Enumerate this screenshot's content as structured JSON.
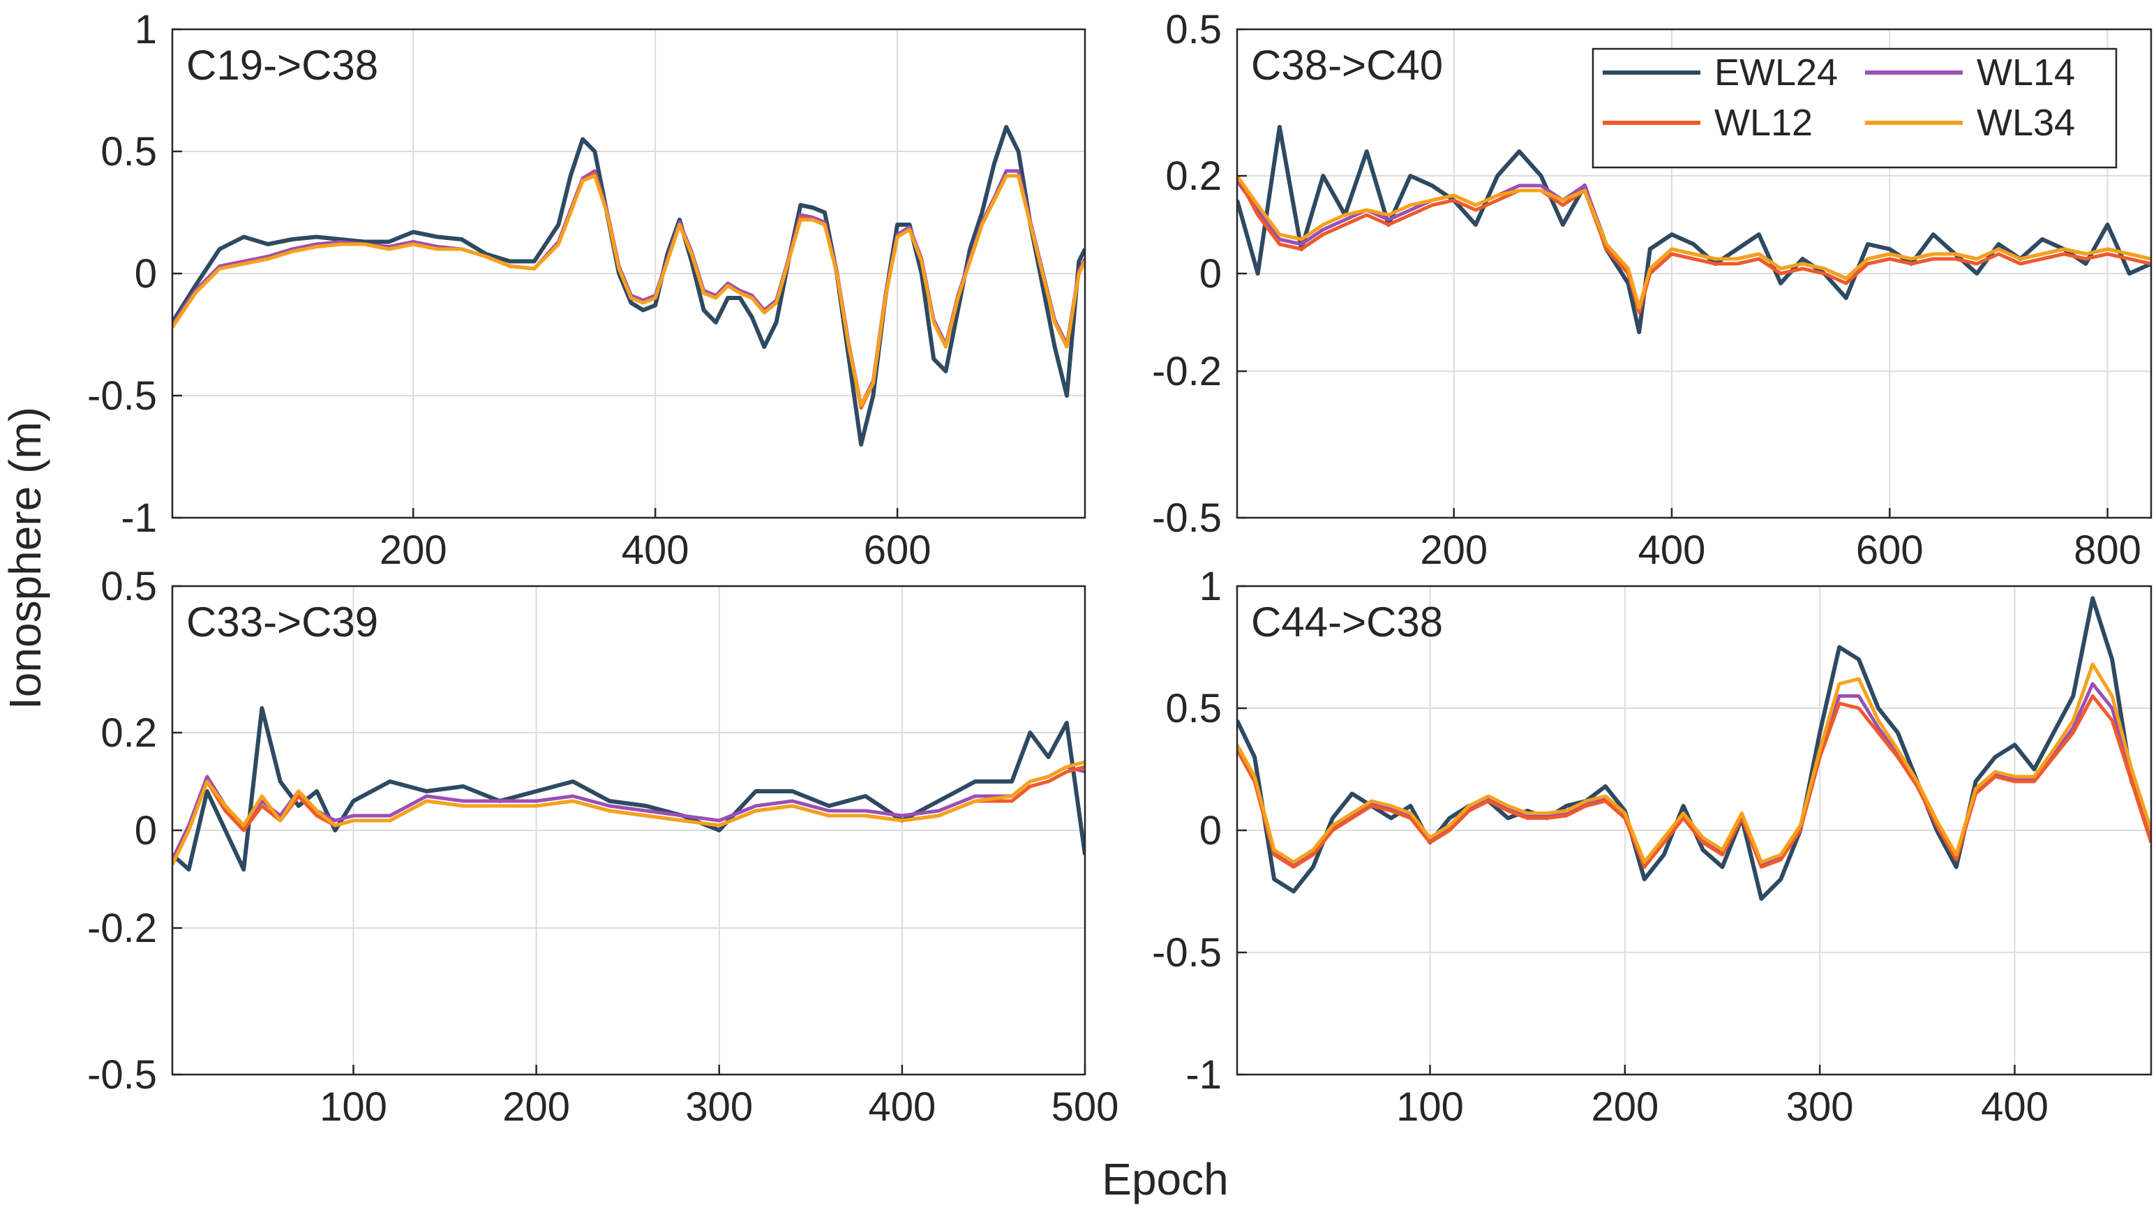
{
  "figure": {
    "ylabel": "Ionosphere (m)",
    "xlabel": "Epoch"
  },
  "legend": {
    "placement": "top-right of panel 2",
    "entries": [
      {
        "name": "EWL24",
        "color": "#2E4A62"
      },
      {
        "name": "WL14",
        "color": "#9B4FB5"
      },
      {
        "name": "WL12",
        "color": "#EF5A2A"
      },
      {
        "name": "WL34",
        "color": "#F7A11A"
      }
    ]
  },
  "chart_data": [
    {
      "type": "line",
      "panel_label": "C19->C38",
      "xlim": [
        1,
        755
      ],
      "ylim": [
        -1,
        1
      ],
      "xticks": [
        200,
        400,
        600
      ],
      "yticks": [
        -1,
        -0.5,
        0,
        0.5,
        1
      ],
      "yticklabels": [
        "-1",
        "-0.5",
        "0",
        "0.5",
        "1"
      ],
      "grid": true,
      "x": [
        1,
        20,
        40,
        60,
        80,
        100,
        120,
        140,
        160,
        180,
        200,
        220,
        240,
        260,
        280,
        300,
        320,
        330,
        340,
        350,
        360,
        370,
        380,
        390,
        400,
        410,
        420,
        430,
        440,
        450,
        460,
        470,
        480,
        490,
        500,
        510,
        520,
        530,
        540,
        550,
        560,
        570,
        580,
        590,
        600,
        610,
        620,
        630,
        640,
        650,
        660,
        670,
        680,
        690,
        700,
        710,
        720,
        730,
        740,
        750,
        755
      ],
      "series": [
        {
          "name": "WL12",
          "values": [
            -0.22,
            -0.08,
            0.02,
            0.04,
            0.06,
            0.09,
            0.11,
            0.12,
            0.12,
            0.1,
            0.12,
            0.1,
            0.1,
            0.07,
            0.03,
            0.02,
            0.12,
            0.25,
            0.38,
            0.41,
            0.25,
            0.02,
            -0.1,
            -0.12,
            -0.1,
            0.05,
            0.2,
            0.08,
            -0.08,
            -0.1,
            -0.05,
            -0.08,
            -0.1,
            -0.16,
            -0.12,
            0.05,
            0.23,
            0.22,
            0.2,
            0.0,
            -0.3,
            -0.55,
            -0.45,
            -0.1,
            0.15,
            0.18,
            0.05,
            -0.2,
            -0.3,
            -0.1,
            0.05,
            0.2,
            0.3,
            0.4,
            0.4,
            0.2,
            0.0,
            -0.2,
            -0.3,
            0.0,
            0.05
          ]
        },
        {
          "name": "WL14",
          "values": [
            -0.21,
            -0.07,
            0.03,
            0.05,
            0.07,
            0.1,
            0.12,
            0.13,
            0.12,
            0.11,
            0.13,
            0.11,
            0.1,
            0.07,
            0.03,
            0.02,
            0.13,
            0.26,
            0.39,
            0.42,
            0.26,
            0.03,
            -0.09,
            -0.11,
            -0.09,
            0.06,
            0.21,
            0.09,
            -0.07,
            -0.09,
            -0.04,
            -0.07,
            -0.09,
            -0.15,
            -0.11,
            0.06,
            0.24,
            0.23,
            0.21,
            0.01,
            -0.29,
            -0.54,
            -0.44,
            -0.09,
            0.16,
            0.19,
            0.06,
            -0.19,
            -0.29,
            -0.09,
            0.06,
            0.21,
            0.31,
            0.42,
            0.42,
            0.21,
            0.01,
            -0.19,
            -0.29,
            0.01,
            0.06
          ]
        },
        {
          "name": "WL34",
          "values": [
            -0.22,
            -0.08,
            0.02,
            0.04,
            0.06,
            0.09,
            0.11,
            0.12,
            0.12,
            0.1,
            0.12,
            0.1,
            0.1,
            0.07,
            0.03,
            0.02,
            0.12,
            0.25,
            0.38,
            0.4,
            0.25,
            0.02,
            -0.1,
            -0.12,
            -0.1,
            0.05,
            0.2,
            0.08,
            -0.08,
            -0.1,
            -0.05,
            -0.08,
            -0.1,
            -0.16,
            -0.12,
            0.05,
            0.22,
            0.22,
            0.2,
            0.0,
            -0.3,
            -0.54,
            -0.45,
            -0.1,
            0.15,
            0.18,
            0.05,
            -0.2,
            -0.3,
            -0.1,
            0.05,
            0.2,
            0.3,
            0.4,
            0.4,
            0.2,
            0.0,
            -0.2,
            -0.3,
            0.0,
            0.05
          ]
        },
        {
          "name": "EWL24",
          "values": [
            -0.2,
            -0.05,
            0.1,
            0.15,
            0.12,
            0.14,
            0.15,
            0.14,
            0.13,
            0.13,
            0.17,
            0.15,
            0.14,
            0.08,
            0.05,
            0.05,
            0.2,
            0.4,
            0.55,
            0.5,
            0.25,
            0.0,
            -0.12,
            -0.15,
            -0.13,
            0.08,
            0.22,
            0.05,
            -0.15,
            -0.2,
            -0.1,
            -0.1,
            -0.18,
            -0.3,
            -0.2,
            0.05,
            0.28,
            0.27,
            0.25,
            0.0,
            -0.35,
            -0.7,
            -0.5,
            -0.1,
            0.2,
            0.2,
            0.0,
            -0.35,
            -0.4,
            -0.15,
            0.1,
            0.25,
            0.45,
            0.6,
            0.5,
            0.2,
            -0.05,
            -0.3,
            -0.5,
            0.05,
            0.1
          ]
        }
      ]
    },
    {
      "type": "line",
      "panel_label": "C38->C40",
      "xlim": [
        1,
        840
      ],
      "ylim": [
        -0.5,
        0.5
      ],
      "xticks": [
        200,
        400,
        600,
        800
      ],
      "yticks": [
        -0.5,
        -0.2,
        0,
        0.2,
        0.5
      ],
      "yticklabels": [
        "-0.5",
        "-0.2",
        "0",
        "0.2",
        "0.5"
      ],
      "grid": true,
      "x": [
        1,
        20,
        40,
        60,
        80,
        100,
        120,
        140,
        160,
        180,
        200,
        220,
        240,
        260,
        280,
        300,
        320,
        340,
        360,
        370,
        380,
        400,
        420,
        440,
        460,
        480,
        500,
        520,
        540,
        560,
        580,
        600,
        620,
        640,
        660,
        680,
        700,
        720,
        740,
        760,
        780,
        800,
        820,
        840
      ],
      "series": [
        {
          "name": "WL12",
          "values": [
            0.2,
            0.12,
            0.06,
            0.05,
            0.08,
            0.1,
            0.12,
            0.1,
            0.12,
            0.14,
            0.15,
            0.13,
            0.15,
            0.17,
            0.17,
            0.14,
            0.17,
            0.05,
            0.0,
            -0.08,
            0.0,
            0.04,
            0.03,
            0.02,
            0.02,
            0.03,
            0.0,
            0.01,
            0.0,
            -0.02,
            0.02,
            0.03,
            0.02,
            0.03,
            0.03,
            0.02,
            0.04,
            0.02,
            0.03,
            0.04,
            0.03,
            0.04,
            0.03,
            0.02
          ]
        },
        {
          "name": "WL14",
          "values": [
            0.19,
            0.13,
            0.07,
            0.06,
            0.09,
            0.11,
            0.13,
            0.11,
            0.13,
            0.15,
            0.16,
            0.14,
            0.16,
            0.18,
            0.18,
            0.15,
            0.18,
            0.06,
            0.01,
            -0.07,
            0.01,
            0.05,
            0.04,
            0.03,
            0.03,
            0.04,
            0.01,
            0.02,
            0.01,
            -0.01,
            0.03,
            0.04,
            0.03,
            0.04,
            0.04,
            0.03,
            0.05,
            0.03,
            0.04,
            0.05,
            0.04,
            0.05,
            0.04,
            0.03
          ]
        },
        {
          "name": "WL34",
          "values": [
            0.2,
            0.14,
            0.08,
            0.07,
            0.1,
            0.12,
            0.13,
            0.12,
            0.14,
            0.15,
            0.16,
            0.14,
            0.16,
            0.17,
            0.17,
            0.15,
            0.17,
            0.06,
            0.01,
            -0.07,
            0.01,
            0.05,
            0.04,
            0.03,
            0.03,
            0.04,
            0.01,
            0.02,
            0.01,
            -0.01,
            0.03,
            0.04,
            0.03,
            0.04,
            0.04,
            0.03,
            0.05,
            0.03,
            0.04,
            0.05,
            0.04,
            0.05,
            0.04,
            0.03
          ]
        },
        {
          "name": "EWL24",
          "values": [
            0.15,
            0.0,
            0.3,
            0.05,
            0.2,
            0.12,
            0.25,
            0.1,
            0.2,
            0.18,
            0.15,
            0.1,
            0.2,
            0.25,
            0.2,
            0.1,
            0.18,
            0.05,
            -0.02,
            -0.12,
            0.05,
            0.08,
            0.06,
            0.02,
            0.05,
            0.08,
            -0.02,
            0.03,
            0.0,
            -0.05,
            0.06,
            0.05,
            0.02,
            0.08,
            0.04,
            0.0,
            0.06,
            0.03,
            0.07,
            0.05,
            0.02,
            0.1,
            0.0,
            0.02
          ]
        }
      ]
    },
    {
      "type": "line",
      "panel_label": "C33->C39",
      "xlim": [
        1,
        500
      ],
      "ylim": [
        -0.5,
        0.5
      ],
      "xticks": [
        100,
        200,
        300,
        400,
        500
      ],
      "yticks": [
        -0.5,
        -0.2,
        0,
        0.2,
        0.5
      ],
      "yticklabels": [
        "-0.5",
        "-0.2",
        "0",
        "0.2",
        "0.5"
      ],
      "grid": true,
      "x": [
        1,
        10,
        20,
        30,
        40,
        50,
        60,
        70,
        80,
        90,
        100,
        120,
        140,
        160,
        180,
        200,
        220,
        240,
        260,
        280,
        300,
        320,
        340,
        360,
        380,
        400,
        420,
        440,
        460,
        470,
        480,
        490,
        500
      ],
      "series": [
        {
          "name": "WL12",
          "values": [
            -0.07,
            0.0,
            0.1,
            0.04,
            0.0,
            0.05,
            0.02,
            0.07,
            0.03,
            0.01,
            0.02,
            0.02,
            0.06,
            0.05,
            0.05,
            0.05,
            0.06,
            0.04,
            0.03,
            0.02,
            0.01,
            0.04,
            0.05,
            0.03,
            0.03,
            0.02,
            0.03,
            0.06,
            0.06,
            0.09,
            0.1,
            0.12,
            0.13
          ]
        },
        {
          "name": "WL14",
          "values": [
            -0.06,
            0.01,
            0.11,
            0.05,
            0.01,
            0.06,
            0.03,
            0.08,
            0.04,
            0.02,
            0.03,
            0.03,
            0.07,
            0.06,
            0.06,
            0.06,
            0.07,
            0.05,
            0.04,
            0.03,
            0.02,
            0.05,
            0.06,
            0.04,
            0.04,
            0.03,
            0.04,
            0.07,
            0.07,
            0.1,
            0.11,
            0.13,
            0.12
          ]
        },
        {
          "name": "WL34",
          "values": [
            -0.07,
            0.0,
            0.1,
            0.05,
            0.01,
            0.07,
            0.02,
            0.08,
            0.04,
            0.01,
            0.02,
            0.02,
            0.06,
            0.05,
            0.05,
            0.05,
            0.06,
            0.04,
            0.03,
            0.02,
            0.01,
            0.04,
            0.05,
            0.03,
            0.03,
            0.02,
            0.03,
            0.06,
            0.07,
            0.1,
            0.11,
            0.13,
            0.14
          ]
        },
        {
          "name": "EWL24",
          "values": [
            -0.05,
            -0.08,
            0.08,
            0.0,
            -0.08,
            0.25,
            0.1,
            0.05,
            0.08,
            0.0,
            0.06,
            0.1,
            0.08,
            0.09,
            0.06,
            0.08,
            0.1,
            0.06,
            0.05,
            0.03,
            0.0,
            0.08,
            0.08,
            0.05,
            0.07,
            0.02,
            0.06,
            0.1,
            0.1,
            0.2,
            0.15,
            0.22,
            -0.05
          ]
        }
      ]
    },
    {
      "type": "line",
      "panel_label": "C44->C38",
      "xlim": [
        1,
        470
      ],
      "ylim": [
        -1,
        1
      ],
      "xticks": [
        100,
        200,
        300,
        400
      ],
      "yticks": [
        -1,
        -0.5,
        0,
        0.5,
        1
      ],
      "yticklabels": [
        "-1",
        "-0.5",
        "0",
        "0.5",
        "1"
      ],
      "grid": true,
      "x": [
        1,
        10,
        20,
        30,
        40,
        50,
        60,
        70,
        80,
        90,
        100,
        110,
        120,
        130,
        140,
        150,
        160,
        170,
        180,
        190,
        200,
        210,
        220,
        230,
        240,
        250,
        260,
        270,
        280,
        290,
        300,
        310,
        320,
        330,
        340,
        350,
        360,
        370,
        380,
        390,
        400,
        410,
        420,
        430,
        440,
        450,
        460,
        470
      ],
      "series": [
        {
          "name": "WL12",
          "values": [
            0.33,
            0.2,
            -0.1,
            -0.15,
            -0.1,
            0.0,
            0.05,
            0.1,
            0.08,
            0.05,
            -0.05,
            0.0,
            0.08,
            0.12,
            0.08,
            0.05,
            0.05,
            0.06,
            0.1,
            0.12,
            0.05,
            -0.15,
            -0.05,
            0.05,
            -0.05,
            -0.1,
            0.05,
            -0.15,
            -0.12,
            0.0,
            0.3,
            0.52,
            0.5,
            0.4,
            0.3,
            0.18,
            0.02,
            -0.12,
            0.15,
            0.22,
            0.2,
            0.2,
            0.3,
            0.4,
            0.55,
            0.45,
            0.2,
            -0.05
          ]
        },
        {
          "name": "WL14",
          "values": [
            0.34,
            0.21,
            -0.09,
            -0.14,
            -0.09,
            0.01,
            0.06,
            0.11,
            0.09,
            0.06,
            -0.04,
            0.01,
            0.09,
            0.13,
            0.09,
            0.06,
            0.06,
            0.07,
            0.11,
            0.13,
            0.06,
            -0.14,
            -0.04,
            0.06,
            -0.04,
            -0.09,
            0.06,
            -0.14,
            -0.11,
            0.01,
            0.31,
            0.55,
            0.55,
            0.42,
            0.31,
            0.19,
            0.03,
            -0.11,
            0.16,
            0.23,
            0.21,
            0.21,
            0.31,
            0.42,
            0.6,
            0.5,
            0.22,
            -0.03
          ]
        },
        {
          "name": "WL34",
          "values": [
            0.35,
            0.22,
            -0.08,
            -0.13,
            -0.08,
            0.02,
            0.07,
            0.12,
            0.1,
            0.07,
            -0.03,
            0.02,
            0.1,
            0.14,
            0.1,
            0.07,
            0.07,
            0.08,
            0.12,
            0.14,
            0.07,
            -0.13,
            -0.03,
            0.07,
            -0.03,
            -0.08,
            0.07,
            -0.13,
            -0.1,
            0.02,
            0.33,
            0.6,
            0.62,
            0.45,
            0.33,
            0.2,
            0.04,
            -0.1,
            0.17,
            0.24,
            0.22,
            0.22,
            0.33,
            0.45,
            0.68,
            0.55,
            0.25,
            0.0
          ]
        },
        {
          "name": "EWL24",
          "values": [
            0.45,
            0.3,
            -0.2,
            -0.25,
            -0.15,
            0.05,
            0.15,
            0.1,
            0.05,
            0.1,
            -0.05,
            0.05,
            0.1,
            0.12,
            0.05,
            0.08,
            0.05,
            0.1,
            0.12,
            0.18,
            0.08,
            -0.2,
            -0.1,
            0.1,
            -0.08,
            -0.15,
            0.05,
            -0.28,
            -0.2,
            0.0,
            0.4,
            0.75,
            0.7,
            0.5,
            0.4,
            0.2,
            0.0,
            -0.15,
            0.2,
            0.3,
            0.35,
            0.25,
            0.4,
            0.55,
            0.95,
            0.7,
            0.2,
            0.0
          ]
        }
      ]
    }
  ]
}
